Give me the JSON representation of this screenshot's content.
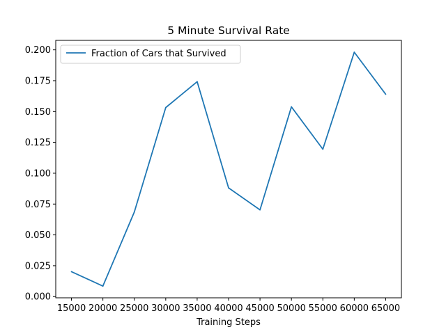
{
  "chart_data": {
    "type": "line",
    "title": "5 Minute Survival Rate",
    "xlabel": "Training Steps",
    "ylabel": "",
    "x": [
      15000,
      20000,
      25000,
      30000,
      35000,
      40000,
      45000,
      50000,
      55000,
      60000,
      65000
    ],
    "series": [
      {
        "name": "Fraction of Cars that Survived",
        "color": "#1f77b4",
        "values": [
          0.0202,
          0.0085,
          0.0685,
          0.1532,
          0.1742,
          0.0881,
          0.0703,
          0.1538,
          0.1195,
          0.1981,
          0.164
        ]
      }
    ],
    "x_ticks": [
      "15000",
      "20000",
      "25000",
      "30000",
      "35000",
      "40000",
      "45000",
      "50000",
      "55000",
      "60000",
      "65000"
    ],
    "y_ticks": [
      "0.000",
      "0.025",
      "0.050",
      "0.075",
      "0.100",
      "0.125",
      "0.150",
      "0.175",
      "0.200"
    ],
    "xlim": [
      12500,
      67500
    ],
    "ylim": [
      -0.001,
      0.2077
    ],
    "grid": false,
    "legend_position": "upper-left"
  }
}
